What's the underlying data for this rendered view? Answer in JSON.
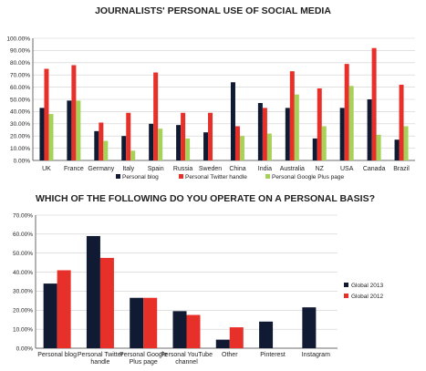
{
  "colors": {
    "blog": "#111a33",
    "twitter": "#e8302a",
    "gplus": "#a6d25a",
    "axis": "#444444",
    "grid": "#cfcfcf"
  },
  "chart_data": [
    {
      "type": "bar",
      "title": "JOURNALISTS' PERSONAL USE OF SOCIAL MEDIA",
      "categories": [
        "UK",
        "France",
        "Germany",
        "Italy",
        "Spain",
        "Russia",
        "Sweden",
        "China",
        "India",
        "Australia",
        "NZ",
        "USA",
        "Canada",
        "Brazil"
      ],
      "series": [
        {
          "name": "Personal blog",
          "values": [
            43,
            49,
            24,
            20,
            30,
            29,
            23,
            64,
            47,
            43,
            18,
            43,
            50,
            17
          ]
        },
        {
          "name": "Personal Twitter handle",
          "values": [
            75,
            78,
            31,
            39,
            72,
            39,
            39,
            28,
            43,
            73,
            59,
            79,
            92,
            62
          ]
        },
        {
          "name": "Personal Google Plus page",
          "values": [
            38,
            49,
            16,
            8,
            26,
            18,
            0,
            20,
            22,
            54,
            28,
            61,
            21,
            28
          ]
        }
      ],
      "ylim": [
        0,
        100
      ],
      "yticks": [
        "0.00%",
        "10.00%",
        "20.00%",
        "30.00%",
        "40.00%",
        "50.00%",
        "60.00%",
        "70.00%",
        "80.00%",
        "90.00%",
        "100.00%"
      ],
      "legend": "bottom"
    },
    {
      "type": "bar",
      "title": "WHICH OF THE FOLLOWING DO YOU OPERATE ON A PERSONAL BASIS?",
      "categories": [
        [
          "Personal blog"
        ],
        [
          "Personal Twitter",
          "handle"
        ],
        [
          "Personal Google",
          "Plus page"
        ],
        [
          "Personal YouTube",
          "channel"
        ],
        [
          "Other"
        ],
        [
          "Pinterest"
        ],
        [
          "Instagram"
        ]
      ],
      "series": [
        {
          "name": "Global 2013",
          "values": [
            34,
            59,
            26.5,
            19.5,
            4.5,
            14,
            21.5
          ]
        },
        {
          "name": "Global 2012",
          "values": [
            41,
            47.5,
            26.5,
            17.5,
            11,
            null,
            null
          ]
        }
      ],
      "ylim": [
        0,
        70
      ],
      "yticks": [
        "0.00%",
        "10.00%",
        "20.00%",
        "30.00%",
        "40.00%",
        "50.00%",
        "60.00%",
        "70.00%"
      ],
      "legend": "right"
    }
  ]
}
